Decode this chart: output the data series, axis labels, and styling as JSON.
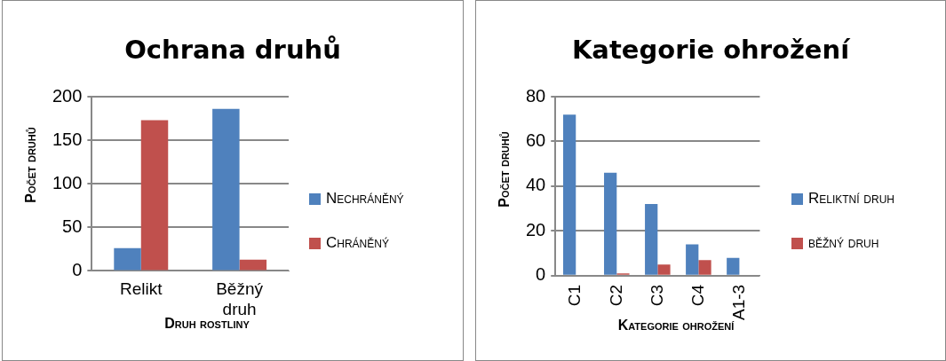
{
  "chart_data": [
    {
      "type": "bar",
      "title": "Ochrana druhů",
      "xlabel": "Druh rostliny",
      "ylabel": "Počet druhů",
      "categories": [
        "Relikt",
        "Běžný druh"
      ],
      "series": [
        {
          "name": "Nechráněný",
          "color": "#4f81bd",
          "values": [
            26,
            186
          ]
        },
        {
          "name": "Chráněný",
          "color": "#c0504d",
          "values": [
            173,
            13
          ]
        }
      ],
      "ylim": [
        0,
        200
      ],
      "yticks": [
        0,
        50,
        100,
        150,
        200
      ],
      "grid": "y",
      "legend": "right"
    },
    {
      "type": "bar",
      "title": "Kategorie ohrožení",
      "xlabel": "Kategorie ohrožení",
      "ylabel": "Počet druhů",
      "categories": [
        "C1",
        "C2",
        "C3",
        "C4",
        "A1-3"
      ],
      "series": [
        {
          "name": "Reliktní druh",
          "color": "#4f81bd",
          "values": [
            72,
            46,
            32,
            14,
            8
          ]
        },
        {
          "name": "běžný druh",
          "color": "#c0504d",
          "values": [
            0,
            1,
            5,
            7,
            0
          ]
        }
      ],
      "ylim": [
        0,
        80
      ],
      "yticks": [
        0,
        20,
        40,
        60,
        80
      ],
      "grid": "y",
      "legend": "right"
    }
  ]
}
